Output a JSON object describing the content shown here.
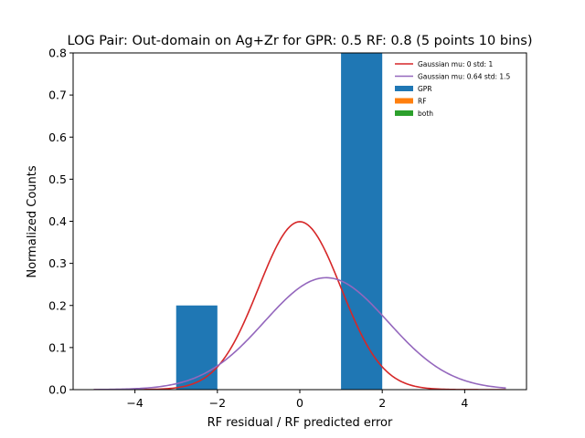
{
  "chart_data": {
    "type": "bar",
    "title": "LOG Pair: Out-domain on Ag+Zr for GPR: 0.5 RF: 0.8 (5 points 10 bins)",
    "xlabel": "RF residual / RF predicted error",
    "ylabel": "Normalized Counts",
    "xlim": [
      -5.5,
      5.5
    ],
    "ylim": [
      0,
      0.8
    ],
    "xticks": [
      -4,
      -2,
      0,
      2,
      4
    ],
    "xtick_labels": [
      "−4",
      "−2",
      "0",
      "2",
      "4"
    ],
    "yticks": [
      0.0,
      0.1,
      0.2,
      0.3,
      0.4,
      0.5,
      0.6,
      0.7,
      0.8
    ],
    "ytick_labels": [
      "0.0",
      "0.1",
      "0.2",
      "0.3",
      "0.4",
      "0.5",
      "0.6",
      "0.7",
      "0.8"
    ],
    "bars": [
      {
        "series": "GPR",
        "x0": -3,
        "x1": -2,
        "value": 0.2
      },
      {
        "series": "GPR",
        "x0": 1,
        "x1": 2,
        "value": 0.8
      }
    ],
    "curves": [
      {
        "name": "Gaussian mu: 0 std: 1",
        "mu": 0,
        "std": 1,
        "xrange": [
          -5,
          5
        ],
        "color": "#d62728"
      },
      {
        "name": "Gaussian mu: 0.64 std: 1.5",
        "mu": 0.64,
        "std": 1.5,
        "xrange": [
          -5,
          5
        ],
        "color": "#9467bd"
      }
    ],
    "legend": [
      {
        "label": "Gaussian mu: 0 std: 1",
        "kind": "line",
        "color": "#d62728"
      },
      {
        "label": "Gaussian mu: 0.64 std: 1.5",
        "kind": "line",
        "color": "#9467bd"
      },
      {
        "label": "GPR",
        "kind": "patch",
        "color": "#1f77b4"
      },
      {
        "label": "RF",
        "kind": "patch",
        "color": "#ff7f0e"
      },
      {
        "label": "both",
        "kind": "patch",
        "color": "#2ca02c"
      }
    ],
    "legend_position": "top-right",
    "grid": false
  }
}
